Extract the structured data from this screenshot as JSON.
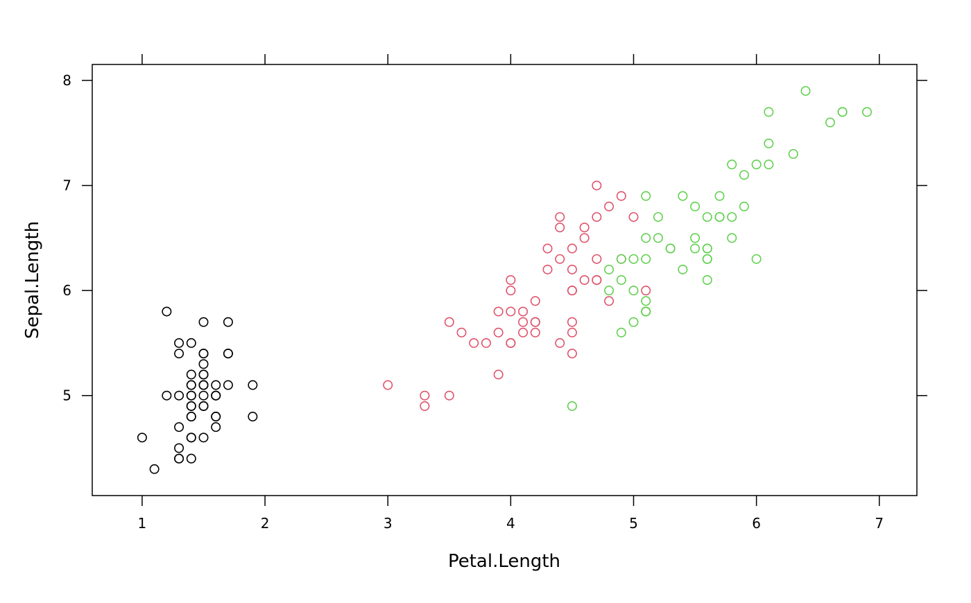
{
  "chart_data": {
    "type": "scatter",
    "title": "",
    "xlabel": "Petal.Length",
    "ylabel": "Sepal.Length",
    "xlim": [
      0.594,
      7.306
    ],
    "ylim": [
      4.048,
      8.152
    ],
    "xticks": [
      "1",
      "2",
      "3",
      "4",
      "5",
      "6",
      "7"
    ],
    "yticks": [
      "5",
      "6",
      "7",
      "8"
    ],
    "grid": false,
    "marker": "open-circle",
    "series": [
      {
        "color": "#000000",
        "x": [
          1.4,
          1.4,
          1.3,
          1.5,
          1.4,
          1.7,
          1.4,
          1.5,
          1.4,
          1.5,
          1.5,
          1.6,
          1.4,
          1.1,
          1.2,
          1.5,
          1.3,
          1.4,
          1.7,
          1.5,
          1.7,
          1.5,
          1.0,
          1.7,
          1.9,
          1.6,
          1.6,
          1.5,
          1.4,
          1.6,
          1.6,
          1.5,
          1.5,
          1.4,
          1.5,
          1.2,
          1.3,
          1.4,
          1.3,
          1.5,
          1.3,
          1.3,
          1.3,
          1.6,
          1.9,
          1.4,
          1.6,
          1.4,
          1.5,
          1.4
        ],
        "y": [
          5.1,
          4.9,
          4.7,
          4.6,
          5.0,
          5.4,
          4.6,
          5.0,
          4.4,
          4.9,
          5.4,
          4.8,
          4.8,
          4.3,
          5.8,
          5.7,
          5.4,
          5.1,
          5.7,
          5.1,
          5.4,
          5.1,
          4.6,
          5.1,
          4.8,
          5.0,
          5.0,
          5.2,
          5.2,
          4.7,
          4.8,
          5.4,
          5.2,
          5.5,
          4.9,
          5.0,
          5.5,
          4.9,
          4.4,
          5.1,
          5.0,
          4.5,
          4.4,
          5.0,
          5.1,
          4.8,
          5.1,
          4.6,
          5.3,
          5.0
        ]
      },
      {
        "color": "#DF536B",
        "x": [
          4.7,
          4.5,
          4.9,
          4.0,
          4.6,
          4.5,
          4.7,
          3.3,
          4.6,
          3.9,
          3.5,
          4.2,
          4.0,
          4.7,
          3.6,
          4.4,
          4.5,
          4.1,
          4.5,
          3.9,
          4.8,
          4.0,
          4.9,
          4.7,
          4.3,
          4.4,
          4.8,
          5.0,
          4.5,
          3.5,
          3.8,
          3.7,
          3.9,
          5.1,
          4.5,
          4.5,
          4.7,
          4.4,
          4.1,
          4.0,
          4.4,
          4.6,
          4.0,
          3.3,
          4.2,
          4.2,
          4.2,
          4.3,
          3.0,
          4.1
        ],
        "y": [
          7.0,
          6.4,
          6.9,
          5.5,
          6.5,
          5.7,
          6.3,
          4.9,
          6.6,
          5.2,
          5.0,
          5.9,
          6.0,
          6.1,
          5.6,
          6.7,
          5.6,
          5.8,
          6.2,
          5.6,
          5.9,
          6.1,
          6.3,
          6.1,
          6.4,
          6.6,
          6.8,
          6.7,
          6.0,
          5.7,
          5.5,
          5.5,
          5.8,
          6.0,
          5.4,
          6.0,
          6.7,
          6.3,
          5.6,
          5.5,
          5.5,
          6.1,
          5.8,
          5.0,
          5.6,
          5.7,
          5.7,
          6.2,
          5.1,
          5.7
        ]
      },
      {
        "color": "#61D04F",
        "x": [
          6.0,
          5.1,
          5.9,
          5.6,
          5.8,
          6.6,
          4.5,
          6.3,
          5.8,
          6.1,
          5.1,
          5.3,
          5.5,
          5.0,
          5.1,
          5.3,
          5.5,
          6.7,
          6.9,
          5.0,
          5.7,
          4.9,
          6.7,
          4.9,
          5.7,
          6.0,
          4.8,
          4.9,
          5.6,
          5.8,
          6.1,
          6.4,
          5.6,
          5.1,
          5.6,
          6.1,
          5.6,
          5.5,
          4.8,
          5.4,
          5.6,
          5.1,
          5.1,
          5.9,
          5.7,
          5.2,
          5.0,
          5.2,
          5.4,
          5.1
        ],
        "y": [
          6.3,
          5.8,
          7.1,
          6.3,
          6.5,
          7.6,
          4.9,
          7.3,
          6.7,
          7.2,
          6.5,
          6.4,
          6.8,
          5.7,
          5.8,
          6.4,
          6.5,
          7.7,
          7.7,
          6.0,
          6.9,
          5.6,
          7.7,
          6.3,
          6.7,
          7.2,
          6.2,
          6.1,
          6.4,
          7.2,
          7.4,
          7.9,
          6.4,
          6.3,
          6.1,
          7.7,
          6.3,
          6.4,
          6.0,
          6.9,
          6.7,
          6.9,
          5.8,
          6.8,
          6.7,
          6.7,
          6.3,
          6.5,
          6.2,
          5.9
        ]
      }
    ]
  }
}
